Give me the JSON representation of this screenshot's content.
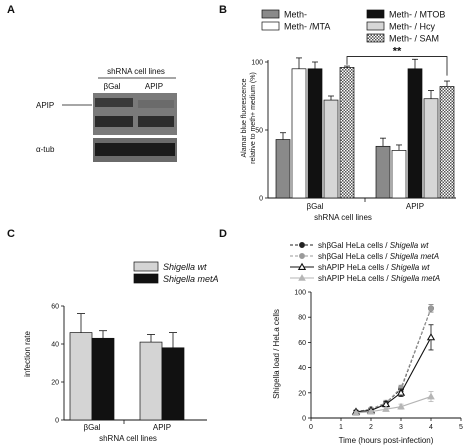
{
  "panels": {
    "a": {
      "letter": "A",
      "header": "shRNA cell lines",
      "lanes": [
        "βGal",
        "APIP"
      ],
      "bands": [
        "APIP",
        "α-tub"
      ]
    },
    "b": {
      "letter": "B",
      "legend": [
        {
          "label": "Meth-",
          "fill": "#8a8a8a",
          "pattern": "solid"
        },
        {
          "label": "Meth- /MTA",
          "fill": "#ffffff",
          "pattern": "solid"
        },
        {
          "label": "Meth- / MTOB",
          "fill": "#111111",
          "pattern": "solid"
        },
        {
          "label": "Meth- / Hcy",
          "fill": "#d6d6d6",
          "pattern": "solid"
        },
        {
          "label": "Meth- / SAM",
          "fill": "#ffffff",
          "pattern": "checker"
        }
      ],
      "significance": "**"
    },
    "c": {
      "letter": "C",
      "legend": [
        {
          "label": "Shigella wt",
          "fill": "#d4d4d4"
        },
        {
          "label": "Shigella metA",
          "fill": "#111111"
        }
      ]
    },
    "d": {
      "letter": "D",
      "legend": [
        {
          "prefix": "shβGal HeLa cells / ",
          "strain": "Shigella wt",
          "color": "#222222",
          "marker": "circle-filled",
          "dash": "3,2"
        },
        {
          "prefix": "shβGal HeLa cells / ",
          "strain": "Shigella metA",
          "color": "#9a9a9a",
          "marker": "circle-filled",
          "dash": "3,2"
        },
        {
          "prefix": "shAPIP HeLa cells / ",
          "strain": "Shigella wt",
          "color": "#111111",
          "marker": "triangle-open",
          "dash": ""
        },
        {
          "prefix": "shAPIP HeLa cells / ",
          "strain": "Shigella metA",
          "color": "#b5b5b5",
          "marker": "triangle-filled",
          "dash": ""
        }
      ]
    }
  },
  "chart_data": [
    {
      "id": "panel-b",
      "type": "bar",
      "xlabel": "shRNA cell lines",
      "ylabel": "Alamar blue fluorescence relative to meth+ medium (%)",
      "categories": [
        "βGal",
        "APIP"
      ],
      "ylim": [
        0,
        100
      ],
      "yticks": [
        0,
        50,
        100
      ],
      "series": [
        {
          "name": "Meth-",
          "values": [
            43,
            38
          ],
          "errors": [
            5,
            6
          ]
        },
        {
          "name": "Meth- /MTA",
          "values": [
            95,
            35
          ],
          "errors": [
            8,
            4
          ]
        },
        {
          "name": "Meth- / MTOB",
          "values": [
            95,
            95
          ],
          "errors": [
            5,
            7
          ]
        },
        {
          "name": "Meth- / Hcy",
          "values": [
            72,
            73
          ],
          "errors": [
            3,
            6
          ]
        },
        {
          "name": "Meth- / SAM",
          "values": [
            96,
            82
          ],
          "errors": [
            1,
            4
          ]
        }
      ]
    },
    {
      "id": "panel-c",
      "type": "bar",
      "xlabel": "shRNA cell lines",
      "ylabel": "infection rate",
      "categories": [
        "βGal",
        "APIP"
      ],
      "ylim": [
        0,
        60
      ],
      "yticks": [
        0,
        20,
        40,
        60
      ],
      "series": [
        {
          "name": "Shigella wt",
          "values": [
            46,
            41
          ],
          "errors": [
            10,
            4
          ]
        },
        {
          "name": "Shigella metA",
          "values": [
            43,
            38
          ],
          "errors": [
            4,
            8
          ]
        }
      ]
    },
    {
      "id": "panel-d",
      "type": "line",
      "xlabel": "Time (hours post-infection)",
      "ylabel": "Shigella load / HeLa cells",
      "xlim": [
        0,
        5
      ],
      "ylim": [
        0,
        100
      ],
      "xticks": [
        0,
        1,
        2,
        3,
        4,
        5
      ],
      "yticks": [
        0,
        20,
        40,
        60,
        80,
        100
      ],
      "x": [
        1.5,
        2,
        2.5,
        3,
        4
      ],
      "series": [
        {
          "name": "shβGal HeLa cells / Shigella wt",
          "values": [
            5,
            7,
            12,
            23,
            87
          ],
          "errors": [
            1,
            1,
            2,
            2,
            3
          ]
        },
        {
          "name": "shβGal HeLa cells / Shigella metA",
          "values": [
            5,
            7,
            12,
            24,
            87
          ],
          "errors": [
            1,
            1,
            2,
            2,
            3
          ]
        },
        {
          "name": "shAPIP HeLa cells / Shigella wt",
          "values": [
            5,
            6,
            11,
            20,
            64
          ],
          "errors": [
            1,
            1,
            2,
            3,
            10
          ]
        },
        {
          "name": "shAPIP HeLa cells / Shigella metA",
          "values": [
            4,
            5,
            7,
            9,
            17
          ],
          "errors": [
            1,
            1,
            1,
            2,
            4
          ]
        }
      ]
    }
  ]
}
